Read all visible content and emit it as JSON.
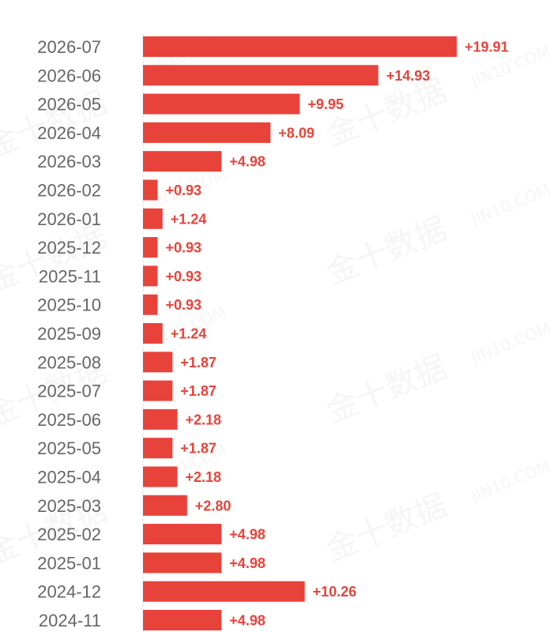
{
  "watermark": {
    "text_cn": "金十数据",
    "text_en": "JIN10.COM"
  },
  "chart_data": {
    "type": "bar",
    "orientation": "horizontal",
    "bar_color": "#e8433b",
    "label_color": "#e8433b",
    "categories": [
      "2026-07",
      "2026-06",
      "2026-05",
      "2026-04",
      "2026-03",
      "2026-02",
      "2026-01",
      "2025-12",
      "2025-11",
      "2025-10",
      "2025-09",
      "2025-08",
      "2025-07",
      "2025-06",
      "2025-05",
      "2025-04",
      "2025-03",
      "2025-02",
      "2025-01",
      "2024-12",
      "2024-11"
    ],
    "values": [
      19.91,
      14.93,
      9.95,
      8.09,
      4.98,
      0.93,
      1.24,
      0.93,
      0.93,
      0.93,
      1.24,
      1.87,
      1.87,
      2.18,
      1.87,
      2.18,
      2.8,
      4.98,
      4.98,
      10.26,
      4.98
    ],
    "value_labels": [
      "+19.91",
      "+14.93",
      "+9.95",
      "+8.09",
      "+4.98",
      "+0.93",
      "+1.24",
      "+0.93",
      "+0.93",
      "+0.93",
      "+1.24",
      "+1.87",
      "+1.87",
      "+2.18",
      "+1.87",
      "+2.18",
      "+2.80",
      "+4.98",
      "+4.98",
      "+10.26",
      "+4.98"
    ],
    "xlim": [
      0,
      19.91
    ],
    "grid": false,
    "title": "",
    "xlabel": "",
    "ylabel": ""
  }
}
